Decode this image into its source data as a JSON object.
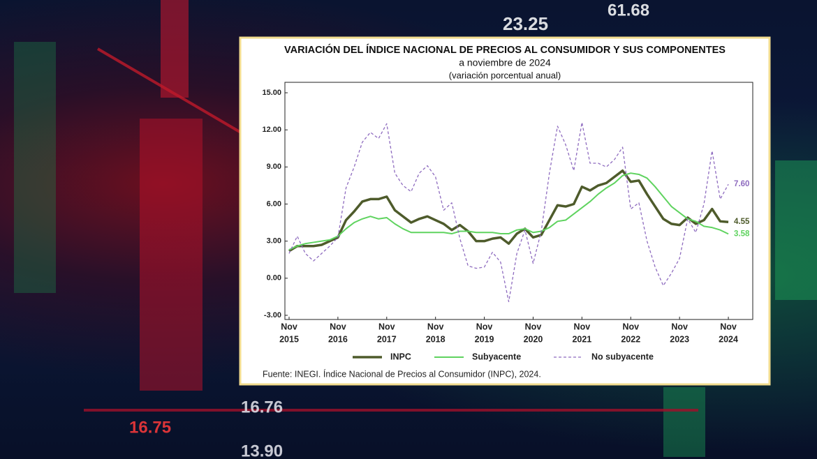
{
  "background": {
    "numbers": [
      "23.25",
      "61.68",
      "16.76",
      "16.75",
      "13.90"
    ]
  },
  "chart_data": {
    "type": "line",
    "title": "VARIACIÓN DEL ÍNDICE NACIONAL DE PRECIOS AL CONSUMIDOR Y SUS COMPONENTES",
    "subtitle": "a noviembre de 2024",
    "note": "(variación porcentual anual)",
    "source": "Fuente: INEGI. Índice Nacional de Precios al Consumidor (INPC), 2024.",
    "x": [
      "2015-11",
      "2016-01",
      "2016-03",
      "2016-05",
      "2016-07",
      "2016-09",
      "2016-11",
      "2017-01",
      "2017-03",
      "2017-05",
      "2017-07",
      "2017-09",
      "2017-11",
      "2018-01",
      "2018-03",
      "2018-05",
      "2018-07",
      "2018-09",
      "2018-11",
      "2019-01",
      "2019-03",
      "2019-05",
      "2019-07",
      "2019-09",
      "2019-11",
      "2020-01",
      "2020-03",
      "2020-05",
      "2020-07",
      "2020-09",
      "2020-11",
      "2021-01",
      "2021-03",
      "2021-05",
      "2021-07",
      "2021-09",
      "2021-11",
      "2022-01",
      "2022-03",
      "2022-05",
      "2022-07",
      "2022-09",
      "2022-11",
      "2023-01",
      "2023-03",
      "2023-05",
      "2023-07",
      "2023-09",
      "2023-11",
      "2024-01",
      "2024-03",
      "2024-05",
      "2024-07",
      "2024-09",
      "2024-11"
    ],
    "xlim": [
      "2015-11",
      "2025-05"
    ],
    "xticks": [
      {
        "value": "2015-11",
        "label": [
          "Nov",
          "2015"
        ]
      },
      {
        "value": "2016-11",
        "label": [
          "Nov",
          "2016"
        ]
      },
      {
        "value": "2017-11",
        "label": [
          "Nov",
          "2017"
        ]
      },
      {
        "value": "2018-11",
        "label": [
          "Nov",
          "2018"
        ]
      },
      {
        "value": "2019-11",
        "label": [
          "Nov",
          "2019"
        ]
      },
      {
        "value": "2020-11",
        "label": [
          "Nov",
          "2020"
        ]
      },
      {
        "value": "2021-11",
        "label": [
          "Nov",
          "2021"
        ]
      },
      {
        "value": "2022-11",
        "label": [
          "Nov",
          "2022"
        ]
      },
      {
        "value": "2023-11",
        "label": [
          "Nov",
          "2023"
        ]
      },
      {
        "value": "2024-11",
        "label": [
          "Nov",
          "2024"
        ]
      }
    ],
    "ylim": [
      -3,
      15
    ],
    "yticks": [
      {
        "value": -3,
        "label": "-3.00"
      },
      {
        "value": 0,
        "label": "0.00"
      },
      {
        "value": 3,
        "label": "3.00"
      },
      {
        "value": 6,
        "label": "6.00"
      },
      {
        "value": 9,
        "label": "9.00"
      },
      {
        "value": 12,
        "label": "12.00"
      },
      {
        "value": 15,
        "label": "15.00"
      }
    ],
    "grid": false,
    "legend": "bottom",
    "series": [
      {
        "name": "INPC",
        "color": "#4e5b2b",
        "width": 3.5,
        "dashed": false,
        "values": [
          2.2,
          2.6,
          2.6,
          2.6,
          2.7,
          3.0,
          3.3,
          4.7,
          5.4,
          6.2,
          6.4,
          6.4,
          6.6,
          5.5,
          5.0,
          4.5,
          4.8,
          5.0,
          4.7,
          4.4,
          3.9,
          4.3,
          3.8,
          3.0,
          3.0,
          3.2,
          3.3,
          2.8,
          3.6,
          4.0,
          3.3,
          3.5,
          4.7,
          5.9,
          5.8,
          6.0,
          7.4,
          7.1,
          7.5,
          7.7,
          8.2,
          8.7,
          7.8,
          7.9,
          6.8,
          5.8,
          4.8,
          4.4,
          4.3,
          4.9,
          4.4,
          4.7,
          5.6,
          4.6,
          4.55
        ],
        "value_labels": [
          null,
          null,
          null,
          null,
          null,
          null,
          null,
          null,
          null,
          null,
          null,
          null,
          null,
          null,
          null,
          null,
          null,
          null,
          null,
          null,
          null,
          null,
          null,
          null,
          null,
          null,
          null,
          null,
          null,
          null,
          null,
          null,
          null,
          null,
          null,
          null,
          null,
          null,
          null,
          null,
          null,
          null,
          null,
          null,
          null,
          null,
          null,
          null,
          null,
          null,
          null,
          null,
          null,
          null,
          "4.55"
        ]
      },
      {
        "name": "Subyacente",
        "color": "#5fd35f",
        "width": 2,
        "dashed": false,
        "values": [
          2.3,
          2.6,
          2.8,
          2.9,
          3.0,
          3.1,
          3.4,
          4.0,
          4.5,
          4.8,
          5.0,
          4.8,
          4.9,
          4.4,
          4.0,
          3.7,
          3.7,
          3.7,
          3.7,
          3.7,
          3.6,
          3.8,
          3.8,
          3.7,
          3.7,
          3.7,
          3.6,
          3.6,
          3.9,
          4.0,
          3.7,
          3.8,
          4.1,
          4.6,
          4.7,
          5.2,
          5.7,
          6.2,
          6.8,
          7.3,
          7.7,
          8.3,
          8.5,
          8.4,
          8.1,
          7.4,
          6.6,
          5.8,
          5.3,
          4.8,
          4.6,
          4.2,
          4.1,
          3.9,
          3.58
        ],
        "value_labels": [
          null,
          null,
          null,
          null,
          null,
          null,
          null,
          null,
          null,
          null,
          null,
          null,
          null,
          null,
          null,
          null,
          null,
          null,
          null,
          null,
          null,
          null,
          null,
          null,
          null,
          null,
          null,
          null,
          null,
          null,
          null,
          null,
          null,
          null,
          null,
          null,
          null,
          null,
          null,
          null,
          null,
          null,
          null,
          null,
          null,
          null,
          null,
          null,
          null,
          null,
          null,
          null,
          null,
          null,
          "3.58"
        ]
      },
      {
        "name": "No subyacente",
        "color": "#8e6bbf",
        "width": 1.3,
        "dashed": true,
        "values": [
          2.0,
          3.4,
          2.0,
          1.4,
          2.0,
          2.6,
          3.3,
          7.3,
          9.0,
          11.0,
          11.8,
          11.3,
          12.5,
          8.5,
          7.5,
          7.0,
          8.5,
          9.1,
          8.2,
          5.5,
          6.1,
          3.2,
          1.0,
          0.8,
          0.9,
          2.1,
          1.3,
          -1.9,
          2.0,
          3.9,
          1.2,
          3.8,
          8.5,
          12.3,
          10.8,
          8.7,
          12.6,
          9.3,
          9.3,
          9.0,
          9.6,
          10.6,
          5.6,
          6.1,
          3.0,
          0.9,
          -0.6,
          0.4,
          1.6,
          4.8,
          3.7,
          6.0,
          10.3,
          6.4,
          7.6
        ],
        "value_labels": [
          null,
          null,
          null,
          null,
          null,
          null,
          null,
          null,
          null,
          null,
          null,
          null,
          null,
          null,
          null,
          null,
          null,
          null,
          null,
          null,
          null,
          null,
          null,
          null,
          null,
          null,
          null,
          null,
          null,
          null,
          null,
          null,
          null,
          null,
          null,
          null,
          null,
          null,
          null,
          null,
          null,
          null,
          null,
          null,
          null,
          null,
          null,
          null,
          null,
          null,
          null,
          null,
          null,
          null,
          "7.60"
        ]
      }
    ]
  }
}
